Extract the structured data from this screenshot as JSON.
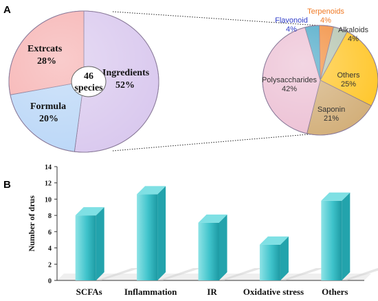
{
  "panels": {
    "a": "A",
    "b": "B"
  },
  "chart_data": [
    {
      "type": "pie",
      "slices": [
        {
          "label": "Ingredients",
          "percent_label": "52%",
          "value": 52,
          "color": "#d9c8ee"
        },
        {
          "label": "Formula",
          "percent_label": "20%",
          "value": 20,
          "color": "#b9d6f7"
        },
        {
          "label": "Extrcats",
          "percent_label": "28%",
          "value": 28,
          "color": "#f6b0b0"
        }
      ],
      "center_label": {
        "line1": "46",
        "line2": "species"
      }
    },
    {
      "type": "pie",
      "slices": [
        {
          "label": "Terpenoids",
          "percent_label": "4%",
          "value": 4,
          "color": "#f28d3c",
          "label_color": "#f07a25"
        },
        {
          "label": "Alkaloids",
          "percent_label": "4%",
          "value": 4,
          "color": "#b5c5b0",
          "label_color": "#333333"
        },
        {
          "label": "Others",
          "percent_label": "25%",
          "value": 25,
          "color": "#ffc629",
          "label_color": "#333333"
        },
        {
          "label": "Saponin",
          "percent_label": "21%",
          "value": 21,
          "color": "#d2ae78",
          "label_color": "#333333"
        },
        {
          "label": "Polysaccharides",
          "percent_label": "42%",
          "value": 42,
          "color": "#ecc0d4",
          "label_color": "#333333"
        },
        {
          "label": "Flavonoid",
          "percent_label": "4%",
          "value": 4,
          "color": "#4aa8c7",
          "label_color": "#2f3cc8"
        }
      ]
    },
    {
      "type": "bar",
      "categories": [
        "SCFAs",
        "Inflammation",
        "IR",
        "Oxidative stress",
        "Others"
      ],
      "values": [
        8,
        10.6,
        7.1,
        4.4,
        9.8
      ],
      "ylabel": "Number of drus",
      "ylim": [
        0,
        14
      ],
      "yticks": [
        0,
        2,
        4,
        6,
        8,
        10,
        12,
        14
      ],
      "bar_color": "#3fc3cb",
      "grid": false
    }
  ]
}
